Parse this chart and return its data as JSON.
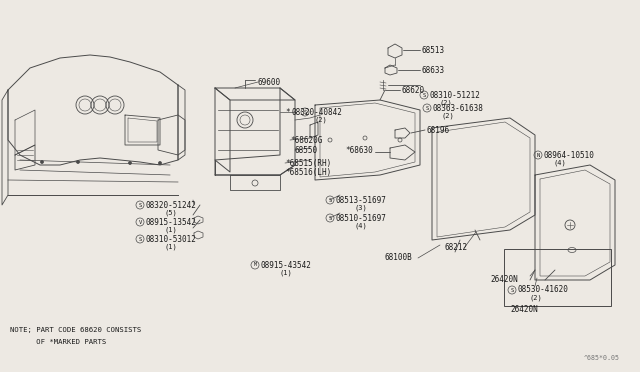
{
  "bg_color": "#ede9e3",
  "line_color": "#4a4a4a",
  "text_color": "#1a1a1a",
  "fig_width": 6.4,
  "fig_height": 3.72,
  "note_line1": "NOTE; PART CODE 68620 CONSISTS",
  "note_line2": "      OF *MARKED PARTS",
  "watermark": "^685*0.05"
}
